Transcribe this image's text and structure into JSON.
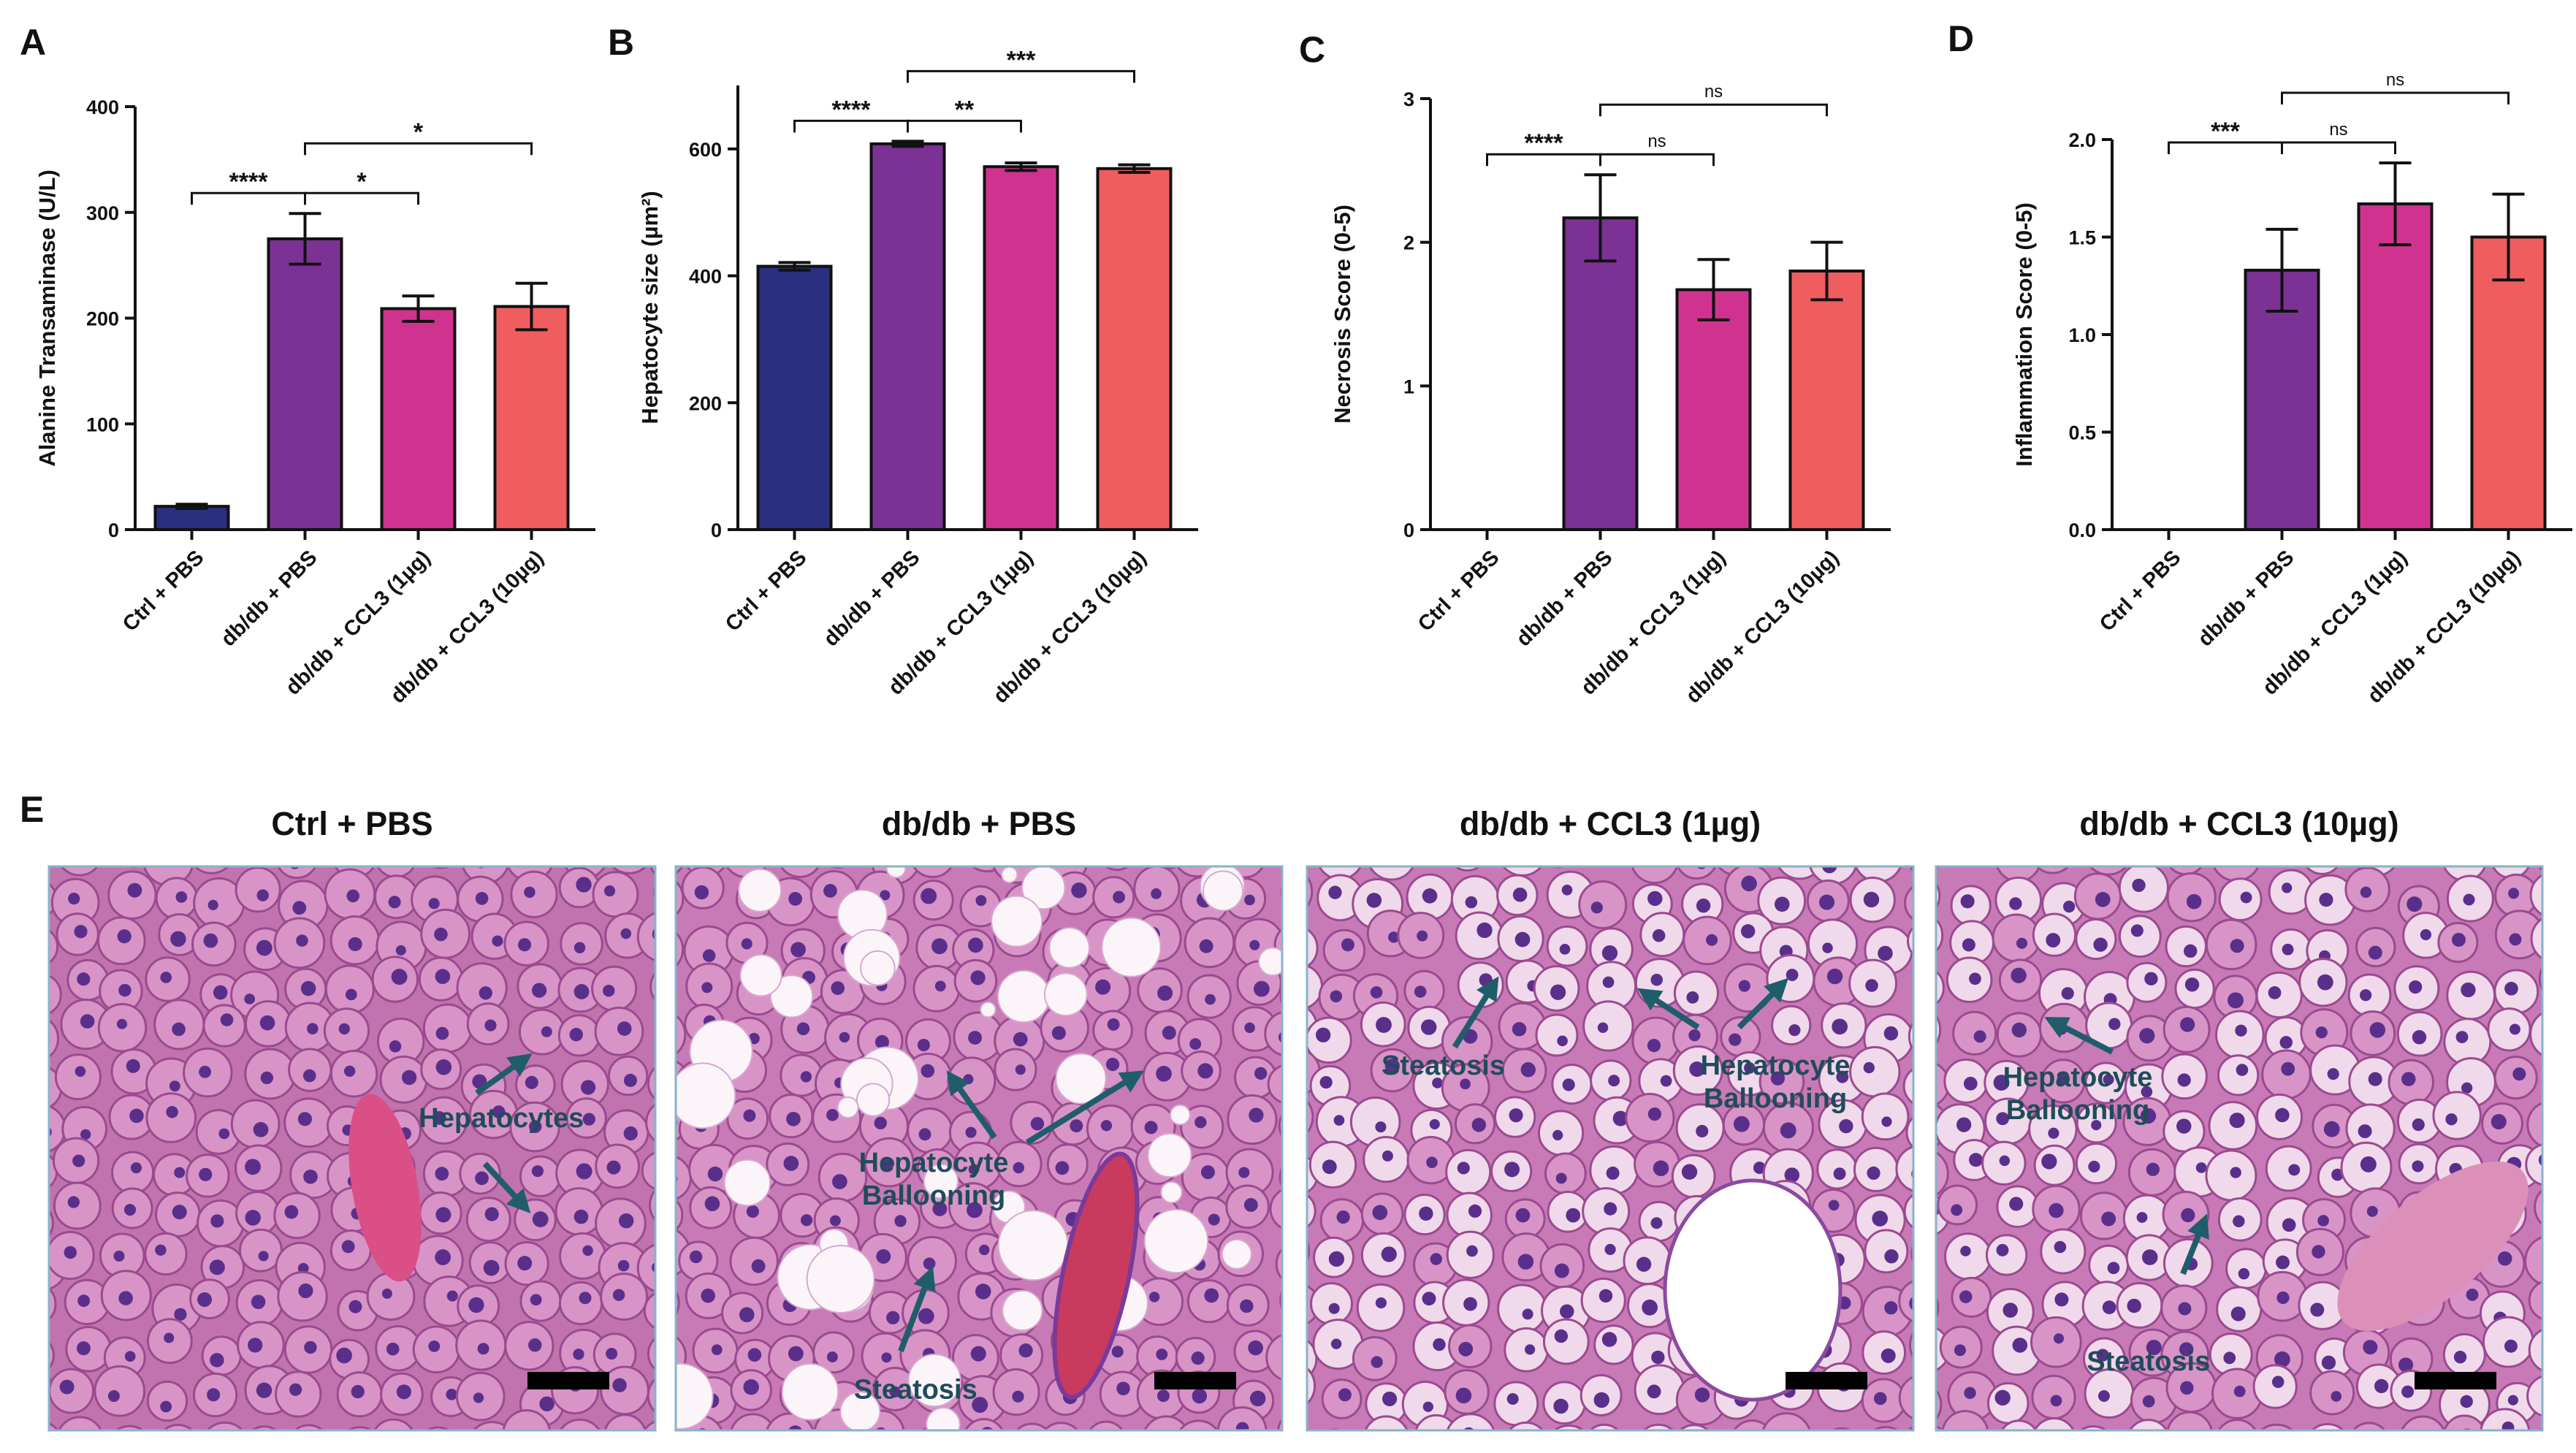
{
  "chart_data": [
    {
      "type": "bar",
      "panel": "A",
      "y_label": "Alanine Transaminase (U/L)",
      "categories": [
        "Ctrl + PBS",
        "db/db + PBS",
        "db/db + CCL3 (1µg)",
        "db/db + CCL3 (10µg)"
      ],
      "values": [
        22,
        275,
        209,
        211
      ],
      "errors": [
        2,
        24,
        12,
        22
      ],
      "colors": [
        "#2b2f7f",
        "#7b3294",
        "#d0338f",
        "#ef5d5e"
      ],
      "ylim": [
        0,
        400
      ],
      "yticks": [
        0,
        100,
        200,
        300,
        400
      ],
      "significance": [
        {
          "pair": [
            0,
            1
          ],
          "label": "****"
        },
        {
          "pair": [
            1,
            2
          ],
          "label": "*"
        },
        {
          "pair": [
            1,
            3
          ],
          "label": "*"
        }
      ]
    },
    {
      "type": "bar",
      "panel": "B",
      "y_label": "Hepatocyte size (µm²)",
      "categories": [
        "Ctrl + PBS",
        "db/db + PBS",
        "db/db + CCL3 (1µg)",
        "db/db + CCL3 (10µg)"
      ],
      "values": [
        415,
        608,
        572,
        569
      ],
      "errors": [
        6,
        4,
        6,
        6
      ],
      "colors": [
        "#2b2f7f",
        "#7b3294",
        "#d0338f",
        "#ef5d5e"
      ],
      "ylim": [
        0,
        700
      ],
      "yticks": [
        0,
        200,
        400,
        600
      ],
      "significance": [
        {
          "pair": [
            0,
            1
          ],
          "label": "****"
        },
        {
          "pair": [
            1,
            2
          ],
          "label": "**"
        },
        {
          "pair": [
            1,
            3
          ],
          "label": "***"
        }
      ]
    },
    {
      "type": "bar",
      "panel": "C",
      "y_label": "Necrosis Score (0-5)",
      "categories": [
        "Ctrl + PBS",
        "db/db + PBS",
        "db/db + CCL3 (1µg)",
        "db/db + CCL3 (10µg)"
      ],
      "values": [
        0,
        2.17,
        1.67,
        1.8
      ],
      "errors": [
        0,
        0.3,
        0.21,
        0.2
      ],
      "colors": [
        "#2b2f7f",
        "#7b3294",
        "#d0338f",
        "#ef5d5e"
      ],
      "ylim": [
        0,
        3
      ],
      "yticks": [
        0,
        1,
        2,
        3
      ],
      "significance": [
        {
          "pair": [
            0,
            1
          ],
          "label": "****"
        },
        {
          "pair": [
            1,
            2
          ],
          "label": "ns"
        },
        {
          "pair": [
            1,
            3
          ],
          "label": "ns"
        }
      ]
    },
    {
      "type": "bar",
      "panel": "D",
      "y_label": "Inflammation Score (0-5)",
      "categories": [
        "Ctrl + PBS",
        "db/db + PBS",
        "db/db + CCL3 (1µg)",
        "db/db + CCL3 (10µg)"
      ],
      "values": [
        0,
        1.33,
        1.67,
        1.5
      ],
      "errors": [
        0,
        0.21,
        0.21,
        0.22
      ],
      "colors": [
        "#2b2f7f",
        "#7b3294",
        "#d0338f",
        "#ef5d5e"
      ],
      "ylim": [
        0,
        2
      ],
      "yticks": [
        {
          "value": 0,
          "label": "0.0"
        },
        0.5,
        {
          "value": 1,
          "label": "1.0"
        },
        1.5,
        {
          "value": 2,
          "label": "2.0"
        }
      ],
      "significance": [
        {
          "pair": [
            0,
            1
          ],
          "label": "***"
        },
        {
          "pair": [
            1,
            2
          ],
          "label": "ns"
        },
        {
          "pair": [
            1,
            3
          ],
          "label": "ns"
        }
      ]
    }
  ],
  "panel_e": {
    "label": "E",
    "images": [
      {
        "title": "Ctrl + PBS",
        "annotations": [
          {
            "lines": [
              "Hepatocytes"
            ]
          }
        ]
      },
      {
        "title": "db/db + PBS",
        "annotations": [
          {
            "lines": [
              "Hepatocyte",
              "Ballooning"
            ]
          },
          {
            "lines": [
              "Steatosis"
            ]
          }
        ]
      },
      {
        "title": "db/db + CCL3 (1µg)",
        "annotations": [
          {
            "lines": [
              "Steatosis"
            ]
          },
          {
            "lines": [
              "Hepatocyte",
              "Ballooning"
            ]
          }
        ]
      },
      {
        "title": "db/db + CCL3 (10µg)",
        "annotations": [
          {
            "lines": [
              "Hepatocyte",
              "Ballooning"
            ]
          },
          {
            "lines": [
              "Steatosis"
            ]
          }
        ]
      }
    ]
  }
}
